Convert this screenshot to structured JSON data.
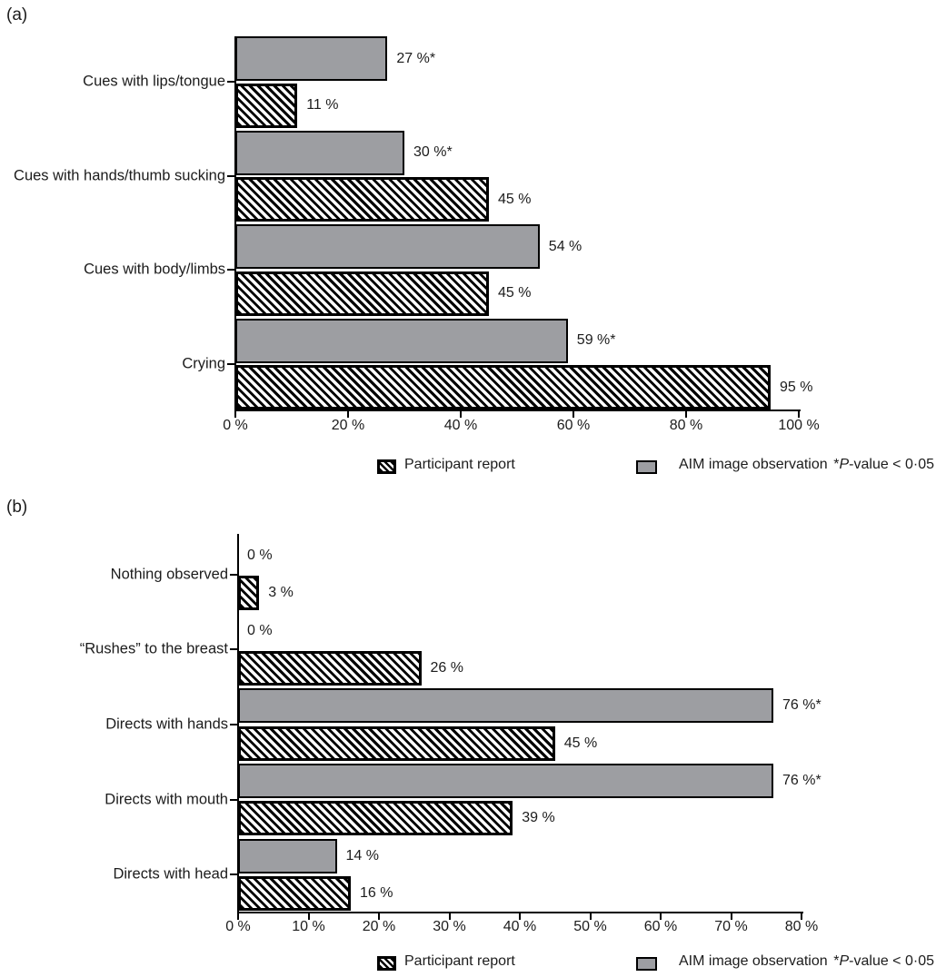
{
  "figure": {
    "panel_a_label": "(a)",
    "panel_b_label": "(b)"
  },
  "legend": {
    "participant": "Participant report",
    "aim": "AIM image observation",
    "note": {
      "star": "*",
      "p": "P",
      "rest": "-value < 0·05"
    }
  },
  "colors": {
    "bar_gray": "#9d9ea2",
    "bar_border": "#000000",
    "hatch_foreground": "#000000",
    "hatch_background": "#ffffff",
    "background": "#ffffff"
  },
  "icons": {
    "participant_swatch": "black-diagonal-hatch-square",
    "aim_swatch": "gray-square"
  },
  "chart_data": [
    {
      "type": "bar",
      "panel_label": "(a)",
      "orientation": "horizontal",
      "categories": [
        "Cues with lips/tongue",
        "Cues with hands/thumb sucking",
        "Cues with body/limbs",
        "Crying"
      ],
      "series": [
        {
          "name": "AIM image observation",
          "style": "solid-gray",
          "values": [
            27,
            30,
            54,
            59
          ],
          "labels": [
            "27 %*",
            "30 %*",
            "54 %",
            "59 %*"
          ]
        },
        {
          "name": "Participant report",
          "style": "black-hatch",
          "values": [
            11,
            45,
            45,
            95
          ],
          "labels": [
            "11 %",
            "45 %",
            "45 %",
            "95 %"
          ]
        }
      ],
      "xlim": [
        0,
        100
      ],
      "xticks": [
        0,
        20,
        40,
        60,
        80,
        100
      ],
      "xtick_labels": [
        "0 %",
        "20 %",
        "40 %",
        "60 %",
        "80 %",
        "100 %"
      ],
      "legend_entries": [
        "Participant report",
        "AIM image observation"
      ],
      "annotation": "*P-value < 0·05",
      "grid": false,
      "legend_position": "bottom"
    },
    {
      "type": "bar",
      "panel_label": "(b)",
      "orientation": "horizontal",
      "categories": [
        "Nothing observed",
        "“Rushes” to the breast",
        "Directs with hands",
        "Directs with mouth",
        "Directs with head"
      ],
      "series": [
        {
          "name": "AIM image observation",
          "style": "solid-gray",
          "values": [
            0,
            0,
            76,
            76,
            14
          ],
          "labels": [
            "0 %",
            "0 %",
            "76 %*",
            "76 %*",
            "14 %"
          ]
        },
        {
          "name": "Participant report",
          "style": "black-hatch",
          "values": [
            3,
            26,
            45,
            39,
            16
          ],
          "labels": [
            "3 %",
            "26 %",
            "45 %",
            "39 %",
            "16 %"
          ]
        }
      ],
      "xlim": [
        0,
        80
      ],
      "xticks": [
        0,
        10,
        20,
        30,
        40,
        50,
        60,
        70,
        80
      ],
      "xtick_labels": [
        "0 %",
        "10 %",
        "20 %",
        "30 %",
        "40 %",
        "50 %",
        "60 %",
        "70 %",
        "80 %"
      ],
      "legend_entries": [
        "Participant report",
        "AIM image observation"
      ],
      "annotation": "*P-value < 0·05",
      "grid": false,
      "legend_position": "bottom"
    }
  ]
}
